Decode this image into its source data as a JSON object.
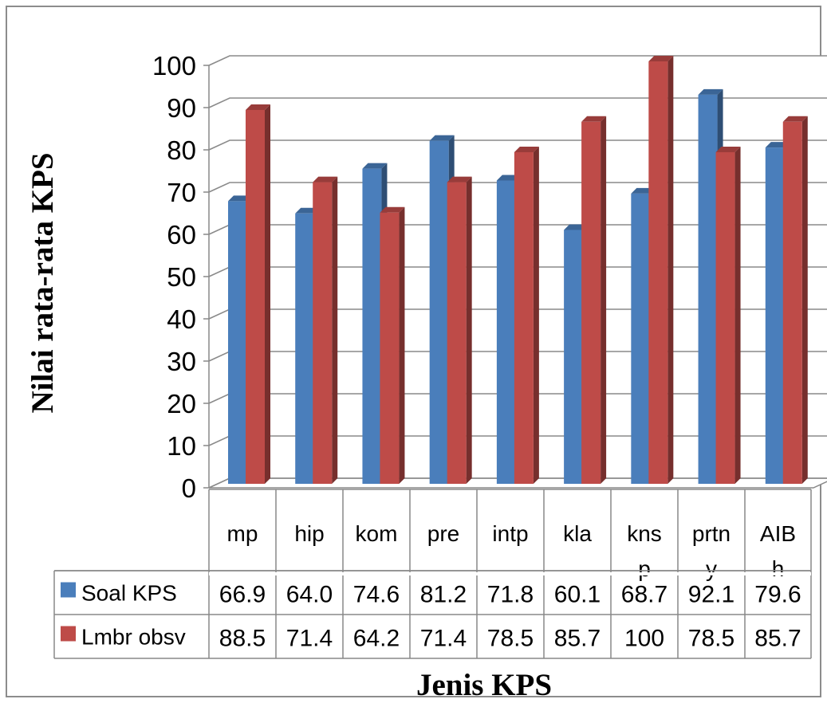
{
  "chart_data": {
    "type": "bar",
    "ylabel": "Nilai rata-rata KPS",
    "xlabel": "Jenis KPS",
    "categories": [
      [
        "mp"
      ],
      [
        "hip"
      ],
      [
        "kom"
      ],
      [
        "pre"
      ],
      [
        "intp"
      ],
      [
        "kla"
      ],
      [
        "kns",
        "p"
      ],
      [
        "prtn",
        "y"
      ],
      [
        "AIB",
        "h"
      ]
    ],
    "series": [
      {
        "name": "Soal KPS",
        "color": "#4a7ebb",
        "values": [
          66.9,
          64.0,
          74.6,
          81.2,
          71.8,
          60.1,
          68.7,
          92.1,
          79.6
        ],
        "labels": [
          "66.9",
          "64.0",
          "74.6",
          "81.2",
          "71.8",
          "60.1",
          "68.7",
          "92.1",
          "79.6"
        ]
      },
      {
        "name": "Lmbr obsv",
        "color": "#be4b48",
        "values": [
          88.5,
          71.4,
          64.2,
          71.4,
          78.5,
          85.7,
          100,
          78.5,
          85.7
        ],
        "labels": [
          "88.5",
          "71.4",
          "64.2",
          "71.4",
          "78.5",
          "85.7",
          "100",
          "78.5",
          "85.7"
        ]
      }
    ],
    "ylim": [
      0,
      100
    ],
    "yticks": [
      "0",
      "10",
      "20",
      "30",
      "40",
      "50",
      "60",
      "70",
      "80",
      "90",
      "100"
    ],
    "grid": true,
    "legend": "data-table",
    "style": "3d-clustered-column"
  }
}
